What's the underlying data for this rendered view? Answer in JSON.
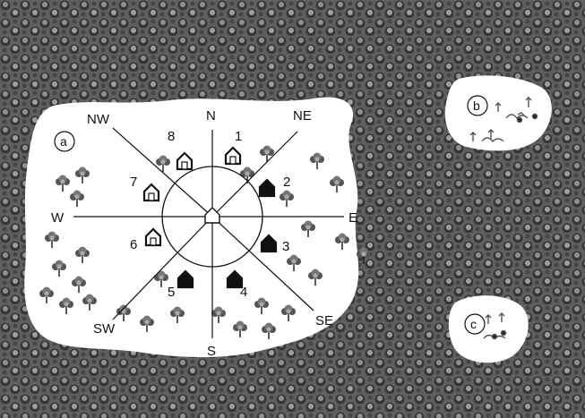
{
  "regions": [
    {
      "id": "a",
      "label": "a"
    },
    {
      "id": "b",
      "label": "b"
    },
    {
      "id": "c",
      "label": "c"
    }
  ],
  "compass": {
    "directions": [
      "N",
      "NE",
      "E",
      "SE",
      "S",
      "SW",
      "W",
      "NW"
    ]
  },
  "houses": [
    {
      "number": "1",
      "filled": false
    },
    {
      "number": "2",
      "filled": true
    },
    {
      "number": "3",
      "filled": true
    },
    {
      "number": "4",
      "filled": true
    },
    {
      "number": "5",
      "filled": true
    },
    {
      "number": "6",
      "filled": false
    },
    {
      "number": "7",
      "filled": false
    },
    {
      "number": "8",
      "filled": false
    }
  ],
  "center_house": {
    "filled": false
  },
  "colors": {
    "forest_canopy": "#3b3b3b",
    "forest_light": "#8c8c8c",
    "clearing": "#ffffff",
    "ink": "#111111"
  },
  "icons": [
    "tree-icon",
    "house-icon",
    "grass-icon"
  ]
}
